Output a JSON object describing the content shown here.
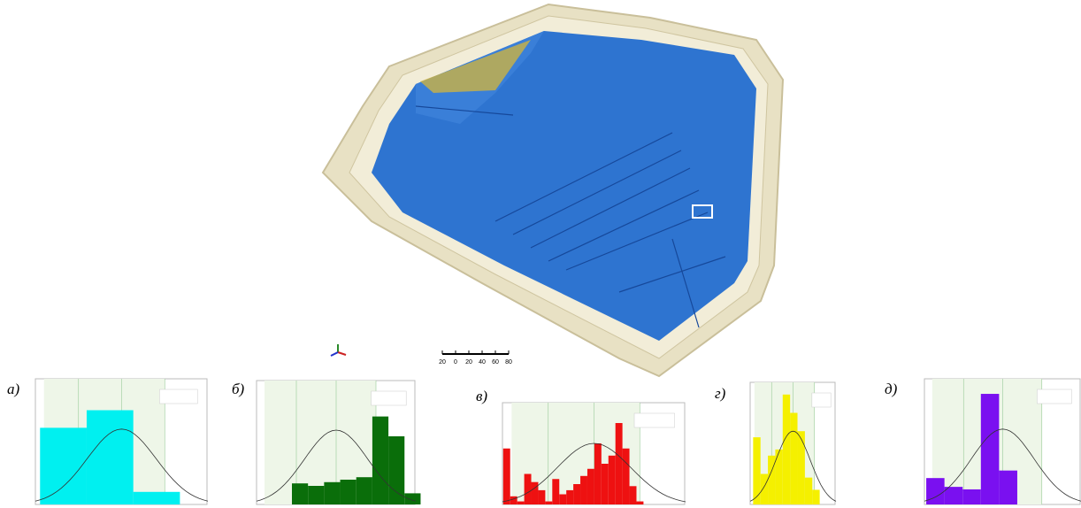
{
  "scale_bar": [
    "20",
    "0",
    "20",
    "40",
    "60",
    "80"
  ],
  "chart_data": [
    {
      "type": "histogram",
      "title": "а)",
      "color": "#00f0f0",
      "bins": [
        0,
        1,
        2,
        3
      ],
      "values": [
        61,
        75,
        10
      ],
      "xlim": [
        -0.1,
        3.6
      ],
      "ylim": [
        0,
        100
      ],
      "grid": true
    },
    {
      "type": "histogram",
      "title": "б)",
      "color": "#0a6e0a",
      "bins": [
        0,
        1,
        2,
        3,
        4,
        5,
        6,
        7,
        8
      ],
      "values": [
        17,
        15,
        18,
        20,
        22,
        71,
        55,
        9
      ],
      "xlim": [
        -2.2,
        7.7
      ],
      "ylim": [
        0,
        100
      ],
      "grid": true
    },
    {
      "type": "histogram",
      "title": "в)",
      "color": "#ee1111",
      "bins": [
        0,
        1,
        2,
        3,
        4,
        5,
        6,
        7,
        8,
        9,
        10,
        11,
        12,
        13,
        14,
        15,
        16,
        17,
        18,
        19,
        20
      ],
      "values": [
        55,
        8,
        3,
        30,
        22,
        14,
        3,
        25,
        10,
        14,
        20,
        28,
        35,
        60,
        40,
        48,
        80,
        55,
        18,
        3
      ],
      "xlim": [
        -0.1,
        26
      ],
      "ylim": [
        0,
        100
      ],
      "grid": true
    },
    {
      "type": "histogram",
      "title": "г)",
      "color": "#f5f000",
      "bins": [
        0,
        1,
        2,
        3,
        4,
        5,
        6,
        7,
        8,
        9
      ],
      "values": [
        55,
        25,
        40,
        45,
        90,
        75,
        60,
        22,
        12
      ],
      "xlim": [
        -0.4,
        11.2
      ],
      "ylim": [
        0,
        100
      ],
      "grid": true
    },
    {
      "type": "histogram",
      "title": "д)",
      "color": "#7a10f0",
      "bins": [
        0,
        1,
        2,
        3,
        4,
        5
      ],
      "values": [
        21,
        14,
        12,
        88,
        27
      ],
      "xlim": [
        -0.1,
        8.5
      ],
      "ylim": [
        0,
        100
      ],
      "grid": true
    }
  ]
}
